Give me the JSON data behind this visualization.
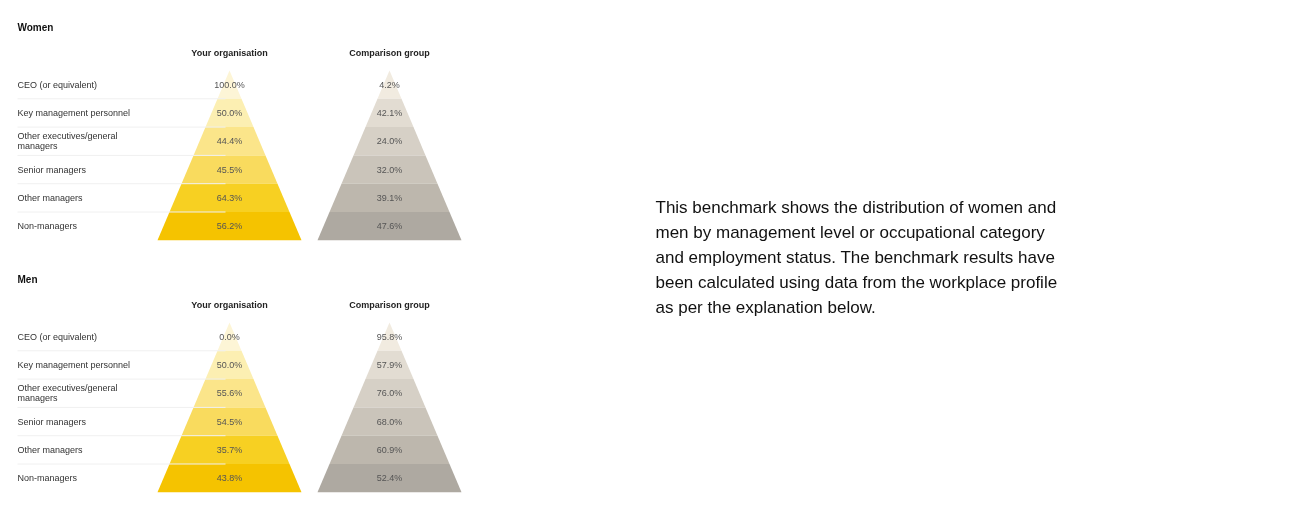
{
  "chart_data": [
    {
      "type": "other",
      "title": "Women",
      "categories": [
        "CEO (or equivalent)",
        "Key management personnel",
        "Other executives/general managers",
        "Senior managers",
        "Other managers",
        "Non-managers"
      ],
      "series": [
        {
          "name": "Your organisation",
          "colors": [
            "#fdf5d6",
            "#fcefb2",
            "#fbe58a",
            "#f9db5e",
            "#f7d022",
            "#f5c300"
          ],
          "values": [
            100.0,
            50.0,
            44.4,
            45.5,
            64.3,
            56.2
          ],
          "value_labels": [
            "100.0%",
            "50.0%",
            "44.4%",
            "45.5%",
            "64.3%",
            "56.2%"
          ]
        },
        {
          "name": "Comparison group",
          "colors": [
            "#f1ebe0",
            "#e2dcd2",
            "#d6d0c6",
            "#cac4ba",
            "#bdb7ad",
            "#aea9a1"
          ],
          "values": [
            4.2,
            42.1,
            24.0,
            32.0,
            39.1,
            47.6
          ],
          "value_labels": [
            "4.2%",
            "42.1%",
            "24.0%",
            "32.0%",
            "39.1%",
            "47.6%"
          ]
        }
      ],
      "annotations": [
        "This benchmark shows the distribution of women and\nmen by management level or occupational category\nand employment status. The benchmark results have\nbeen calculated using data from the workplace profile\nas per the explanation below."
      ]
    },
    {
      "type": "other",
      "title": "Men",
      "categories": [
        "CEO (or equivalent)",
        "Key management personnel",
        "Other executives/general managers",
        "Senior managers",
        "Other managers",
        "Non-managers"
      ],
      "series": [
        {
          "name": "Your organisation",
          "colors": [
            "#fdf5d6",
            "#fcefb2",
            "#fbe58a",
            "#f9db5e",
            "#f7d022",
            "#f5c300"
          ],
          "values": [
            0.0,
            50.0,
            55.6,
            54.5,
            35.7,
            43.8
          ],
          "value_labels": [
            "0.0%",
            "50.0%",
            "55.6%",
            "54.5%",
            "35.7%",
            "43.8%"
          ]
        },
        {
          "name": "Comparison group",
          "colors": [
            "#f1ebe0",
            "#e2dcd2",
            "#d6d0c6",
            "#cac4ba",
            "#bdb7ad",
            "#aea9a1"
          ],
          "values": [
            95.8,
            57.9,
            76.0,
            68.0,
            60.9,
            52.4
          ],
          "value_labels": [
            "95.8%",
            "57.9%",
            "76.0%",
            "68.0%",
            "60.9%",
            "52.4%"
          ]
        }
      ]
    }
  ]
}
